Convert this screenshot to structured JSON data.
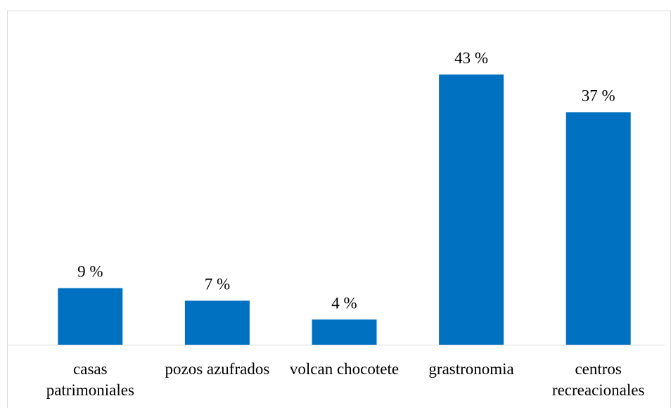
{
  "chart_data": {
    "type": "bar",
    "categories": [
      "casas patrimoniales",
      "pozos azufrados",
      "volcan chocotete",
      "grastronomia",
      "centros recreacionales"
    ],
    "values": [
      9,
      7,
      4,
      43,
      37
    ],
    "value_labels": [
      "9 %",
      "7 %",
      "4 %",
      "43 %",
      "37 %"
    ],
    "color": "#0070c0",
    "ylim": [
      0,
      45
    ]
  }
}
